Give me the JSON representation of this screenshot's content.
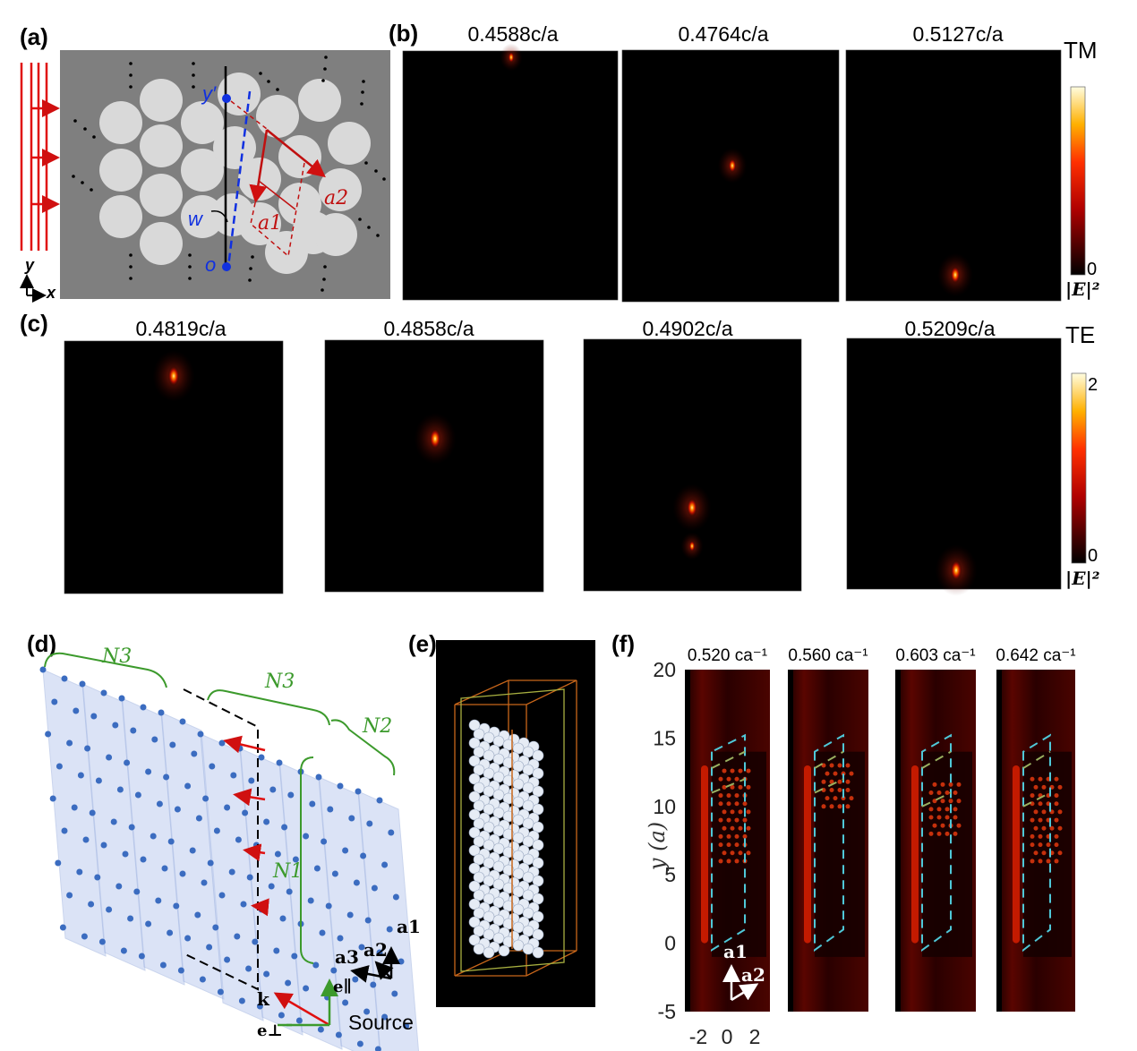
{
  "panels": {
    "a": {
      "label": "(a)",
      "point_top": "y′",
      "point_bottom": "o",
      "angle": "w",
      "vec1": "a1",
      "vec2": "a2",
      "axis_y": "y",
      "axis_x": "x"
    },
    "b": {
      "label": "(b)",
      "mode": "TM",
      "frequencies": [
        "0.4588c/a",
        "0.4764c/a",
        "0.5127c/a"
      ],
      "colorbar_min": "0",
      "colorbar_unit": "|E|²"
    },
    "c": {
      "label": "(c)",
      "mode": "TE",
      "frequencies": [
        "0.4819c/a",
        "0.4858c/a",
        "0.4902c/a",
        "0.5209c/a"
      ],
      "colorbar_max": "2",
      "colorbar_min": "0",
      "colorbar_unit": "|E|²"
    },
    "d": {
      "label": "(d)",
      "n3_left": "N3",
      "n3_right": "N3",
      "n2": "N2",
      "n1": "N1",
      "vec_a1": "a1",
      "vec_a2": "a2",
      "vec_a3": "a3",
      "k": "k",
      "e_par": "e∥",
      "e_perp": "e⊥",
      "source": "Source"
    },
    "e": {
      "label": "(e)"
    },
    "f": {
      "label": "(f)",
      "frequencies": [
        "0.520 ca⁻¹",
        "0.560 ca⁻¹",
        "0.603 ca⁻¹",
        "0.642 ca⁻¹"
      ],
      "ylabel": "y (a)",
      "yticks": [
        "20",
        "15",
        "10",
        "5",
        "0",
        "-5"
      ],
      "xticks": [
        "-2",
        "0",
        "2"
      ],
      "vec_a1": "a1",
      "vec_a2": "a2"
    }
  },
  "colors": {
    "field_dark": "#000000",
    "field_hot": "#ff2000",
    "accent_red": "#d01010",
    "dashed_cyan": "#4fc8d8",
    "lattice_blue": "#3b6cc0",
    "green": "#3c9a2c"
  }
}
